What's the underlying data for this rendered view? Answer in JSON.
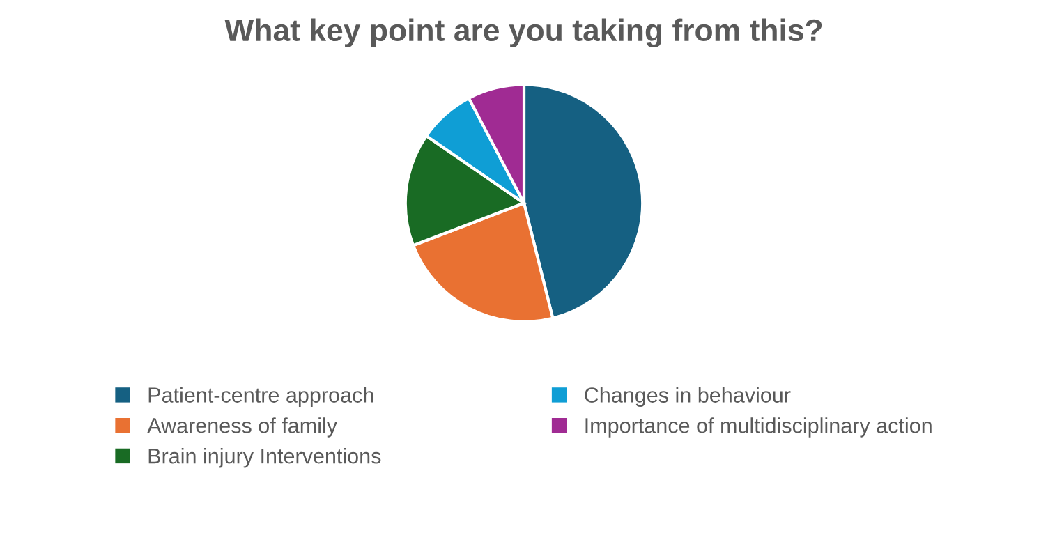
{
  "chart_data": {
    "type": "pie",
    "title": "What key point are you taking from this?",
    "categories": [
      "Patient-centre approach",
      "Awareness of family",
      "Brain injury Interventions",
      "Changes in behaviour",
      "Importance of multidisciplinary action"
    ],
    "values": [
      46.1,
      23.1,
      15.4,
      7.7,
      7.7
    ],
    "colors": [
      "#156082",
      "#e97132",
      "#196b24",
      "#0f9ed5",
      "#a02b93"
    ],
    "legend": "bottom"
  }
}
